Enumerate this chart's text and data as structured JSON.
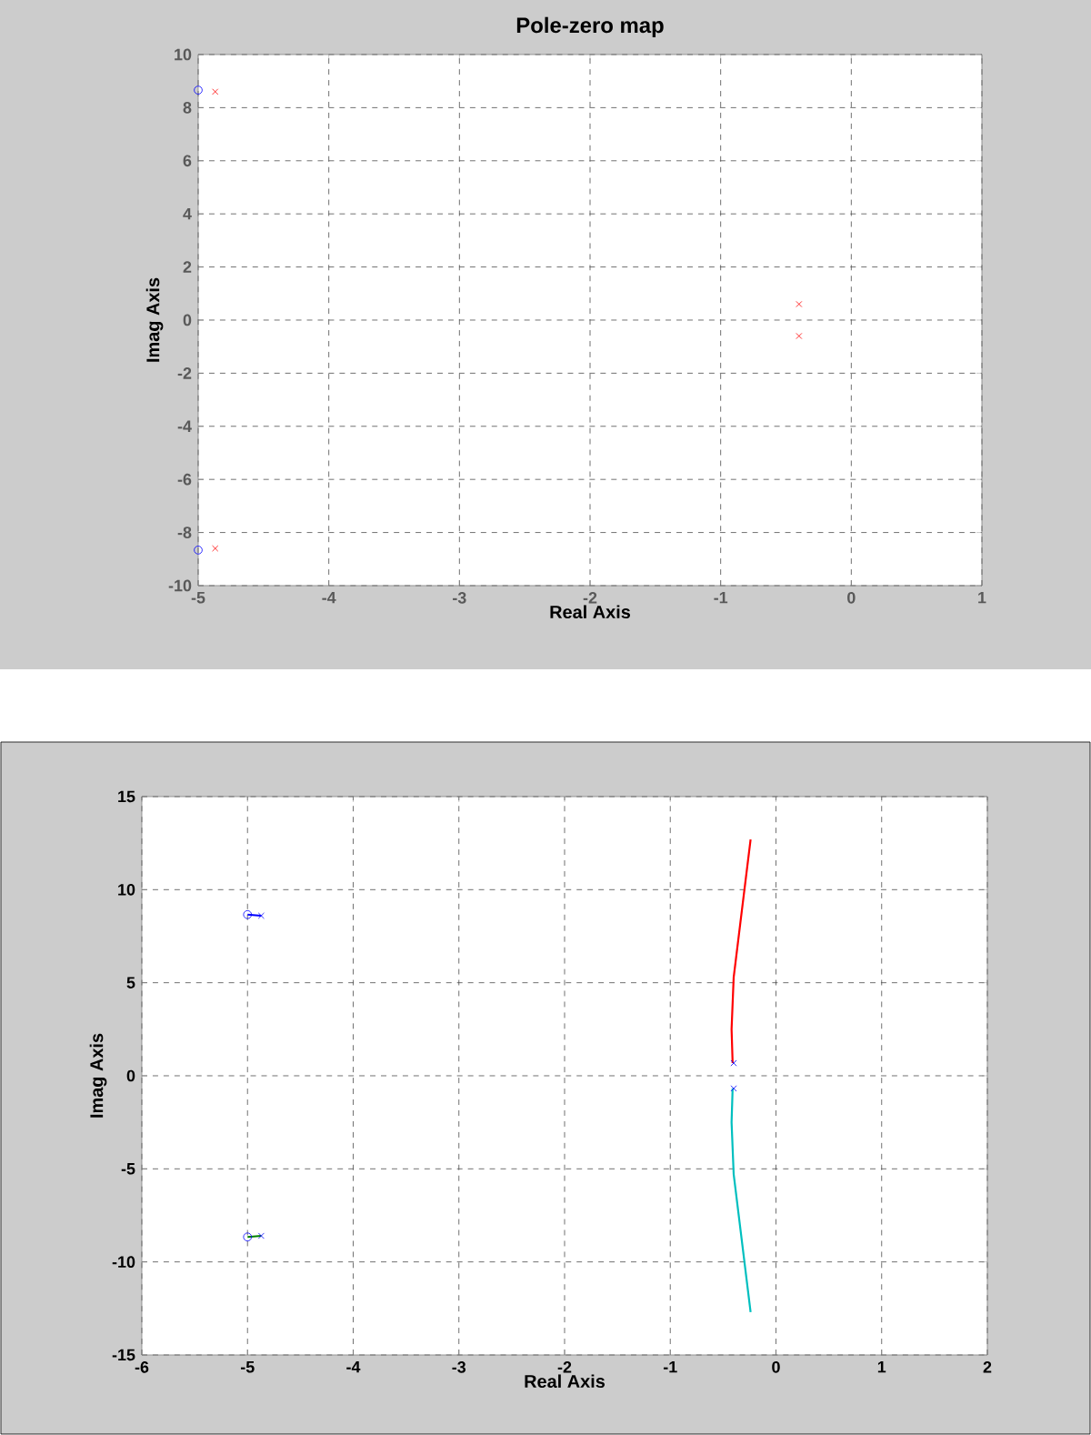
{
  "chart_data": [
    {
      "type": "scatter",
      "title": "Pole-zero map",
      "xlabel": "Real Axis",
      "ylabel": "Imag Axis",
      "xlim": [
        -5,
        1
      ],
      "ylim": [
        -10,
        10
      ],
      "xticks": [
        -5,
        -4,
        -3,
        -2,
        -1,
        0,
        1
      ],
      "yticks": [
        -10,
        -8,
        -6,
        -4,
        -2,
        0,
        2,
        4,
        6,
        8,
        10
      ],
      "grid": true,
      "series": [
        {
          "color": "#ff0000",
          "marker": "cross",
          "x": [
            -4.87,
            -4.87,
            -0.4,
            -0.4
          ],
          "values": [
            8.6,
            -8.6,
            0.6,
            -0.6
          ]
        },
        {
          "color": "#0000ff",
          "marker": "circle",
          "x": [
            -5.0,
            -5.0
          ],
          "values": [
            8.66,
            -8.66
          ]
        }
      ]
    },
    {
      "type": "line",
      "xlabel": "Real Axis",
      "ylabel": "Imag Axis",
      "xlim": [
        -6,
        2
      ],
      "ylim": [
        -15,
        15
      ],
      "xticks": [
        -6,
        -5,
        -4,
        -3,
        -2,
        -1,
        0,
        1,
        2
      ],
      "yticks": [
        -15,
        -10,
        -5,
        0,
        5,
        10,
        15
      ],
      "grid": true,
      "series": [
        {
          "type": "line",
          "color": "#ff0000",
          "x": [
            -0.41,
            -0.42,
            -0.4,
            -0.24
          ],
          "values": [
            0.68,
            2.5,
            5.3,
            12.7
          ]
        },
        {
          "type": "line",
          "color": "#00bfbf",
          "x": [
            -0.41,
            -0.42,
            -0.4,
            -0.24
          ],
          "values": [
            -0.68,
            -2.5,
            -5.3,
            -12.7
          ]
        },
        {
          "type": "line",
          "color": "#0000ff",
          "x": [
            -5.0,
            -4.87
          ],
          "values": [
            8.66,
            8.6
          ]
        },
        {
          "type": "line",
          "color": "#008000",
          "x": [
            -5.0,
            -4.87
          ],
          "values": [
            -8.66,
            -8.6
          ]
        },
        {
          "type": "scatter",
          "color": "#0000ff",
          "marker": "cross",
          "x": [
            -4.87,
            -4.87,
            -0.4,
            -0.4
          ],
          "values": [
            8.6,
            -8.6,
            0.68,
            -0.68
          ]
        },
        {
          "type": "scatter",
          "color": "#0000ff",
          "marker": "circle",
          "x": [
            -5.0,
            -5.0
          ],
          "values": [
            8.66,
            -8.66
          ]
        }
      ]
    }
  ]
}
